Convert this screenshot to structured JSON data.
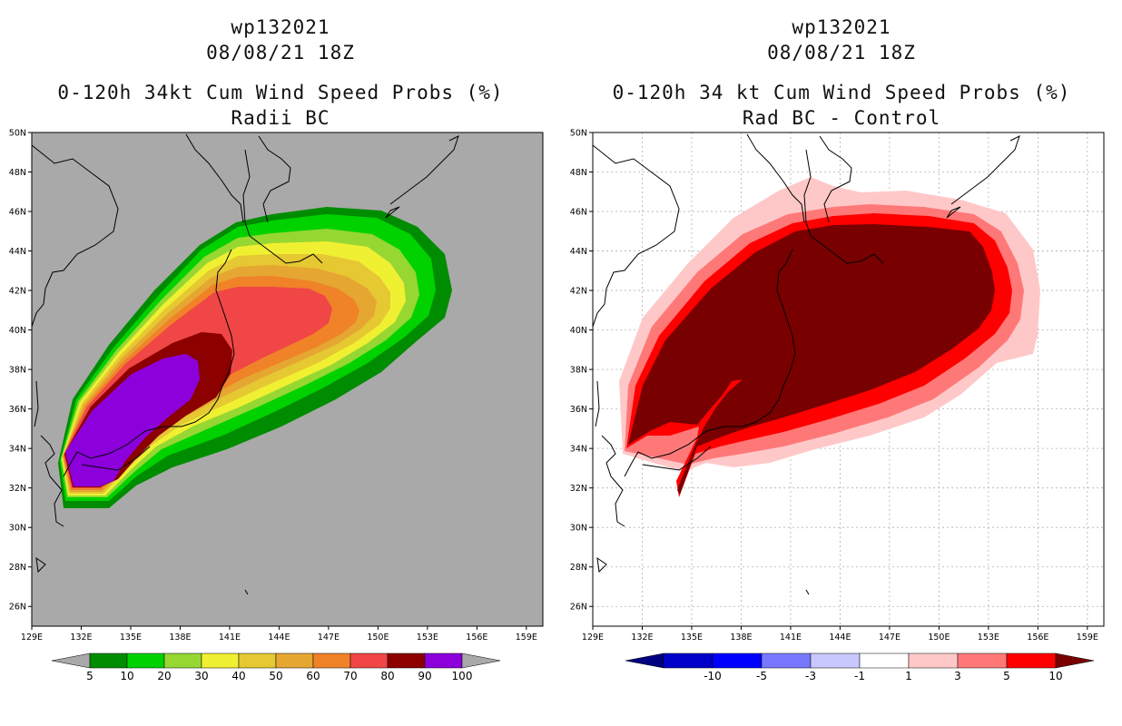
{
  "chart_data": [
    {
      "type": "heatmap",
      "storm_id": "wp132021",
      "datetime": "08/08/21 18Z",
      "title": "0-120h 34kt Cum Wind Speed Probs (%)",
      "subtitle": "Radii BC",
      "xlim": [
        129,
        160
      ],
      "ylim": [
        25,
        50
      ],
      "x_ticks": [
        "129E",
        "132E",
        "135E",
        "138E",
        "141E",
        "144E",
        "147E",
        "150E",
        "153E",
        "156E",
        "159E"
      ],
      "y_ticks": [
        "26N",
        "28N",
        "30N",
        "32N",
        "34N",
        "36N",
        "38N",
        "40N",
        "42N",
        "44N",
        "46N",
        "48N",
        "50N"
      ],
      "grid": false,
      "background": "#a9a9a9",
      "colorbar": {
        "levels": [
          "5",
          "10",
          "20",
          "30",
          "40",
          "50",
          "60",
          "70",
          "80",
          "90",
          "100"
        ],
        "colors": [
          "#008c00",
          "#00d200",
          "#96d732",
          "#f0f032",
          "#e6c832",
          "#e6a632",
          "#f08228",
          "#f04646",
          "#8c0000",
          "#8c00dc"
        ],
        "end_arrow_color": "#a9a9a9"
      }
    },
    {
      "type": "heatmap",
      "storm_id": "wp132021",
      "datetime": "08/08/21 18Z",
      "title": "0-120h 34 kt Cum Wind Speed Probs (%)",
      "subtitle": "Rad BC - Control",
      "xlim": [
        129,
        160
      ],
      "ylim": [
        25,
        50
      ],
      "x_ticks": [
        "129E",
        "132E",
        "135E",
        "138E",
        "141E",
        "144E",
        "147E",
        "150E",
        "153E",
        "156E",
        "159E"
      ],
      "y_ticks": [
        "26N",
        "28N",
        "30N",
        "32N",
        "34N",
        "36N",
        "38N",
        "40N",
        "42N",
        "44N",
        "46N",
        "48N",
        "50N"
      ],
      "grid": true,
      "background": "#ffffff",
      "colorbar": {
        "levels": [
          "-10",
          "-5",
          "-3",
          "-1",
          "1",
          "3",
          "5",
          "10"
        ],
        "colors": [
          "#0000c8",
          "#0000ff",
          "#7878ff",
          "#c8c8ff",
          "#ffffff",
          "#ffc8c8",
          "#ff7878",
          "#ff0000"
        ],
        "low_arrow_color": "#000080",
        "high_arrow_color": "#780000"
      }
    }
  ]
}
